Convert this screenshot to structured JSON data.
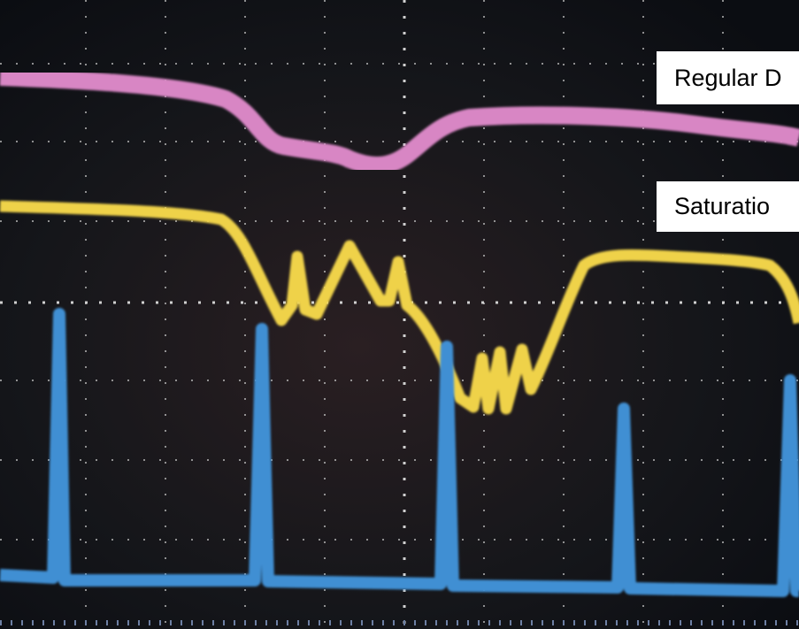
{
  "labels": {
    "regular": "Regular D",
    "saturation": "Saturatio"
  }
}
